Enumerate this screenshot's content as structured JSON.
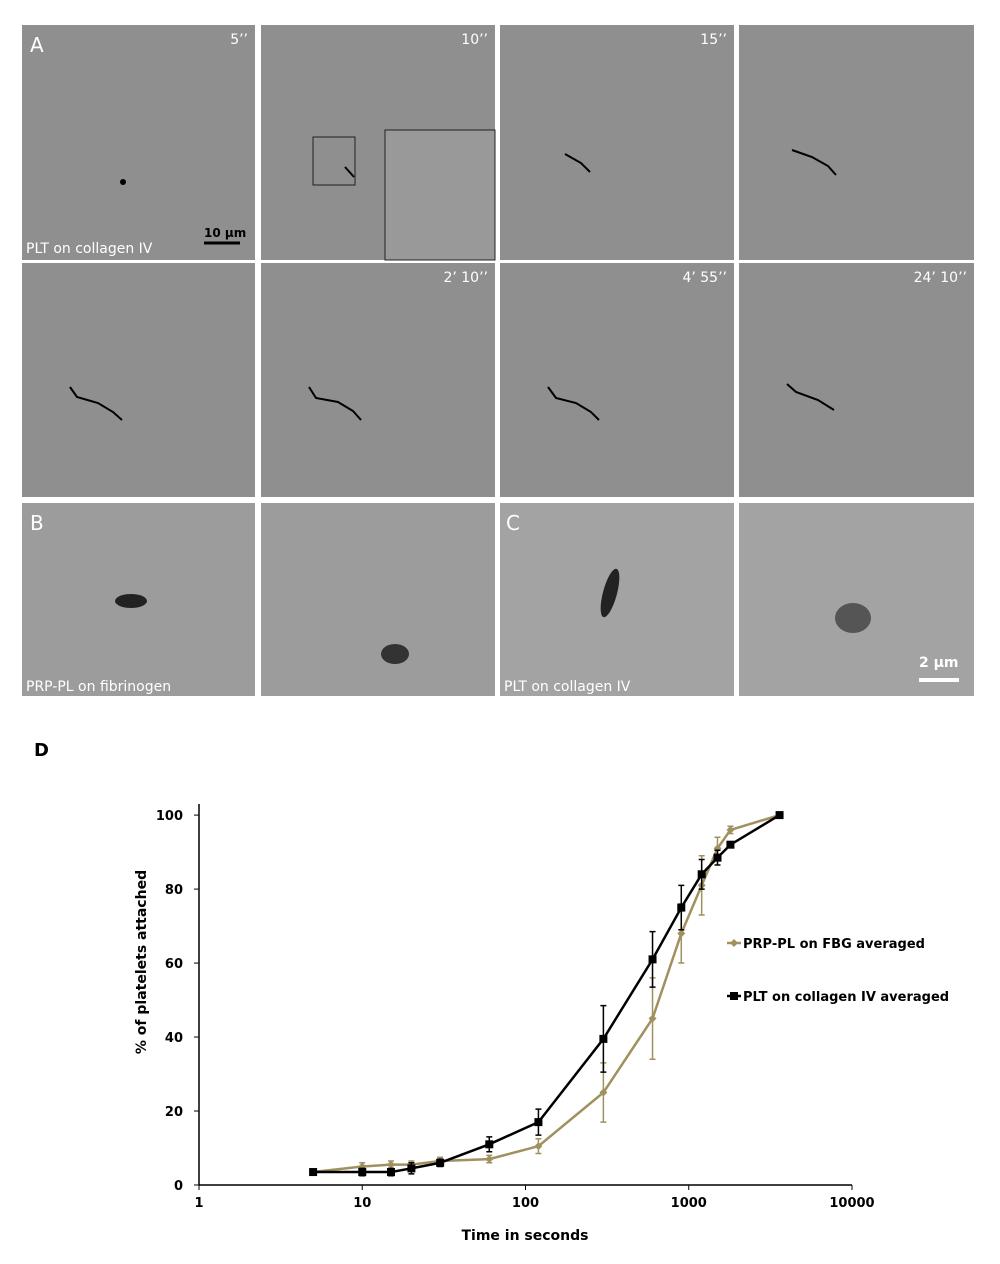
{
  "panels": {
    "a1": {
      "letter": "A",
      "time": "5’’",
      "scale": "10 µm",
      "caption": "PLT on collagen IV"
    },
    "a2": {
      "time": "10’’"
    },
    "a3": {
      "time": "15’’"
    },
    "a6": {
      "time": "2’ 10’’"
    },
    "a7": {
      "time": "4’ 55’’"
    },
    "a8": {
      "time": "24’ 10’’"
    },
    "b1": {
      "letter": "B",
      "caption": "PRP-PL on fibrinogen"
    },
    "c1": {
      "letter": "C",
      "caption": "PLT on collagen IV"
    },
    "c2": {
      "scale": "2 µm"
    }
  },
  "chart_data": {
    "type": "line",
    "panel_label": "D",
    "x_label": "Time in seconds",
    "y_label": "% of platelets attached",
    "x_scale": "log",
    "xlim": [
      1,
      10000
    ],
    "xticks": [
      1,
      10,
      100,
      1000,
      10000
    ],
    "ylim": [
      0,
      103
    ],
    "yticks": [
      0,
      20,
      40,
      60,
      80,
      100
    ],
    "legend": "right",
    "x": [
      5,
      10,
      15,
      20,
      30,
      60,
      120,
      300,
      600,
      900,
      1200,
      1500,
      1800,
      3600
    ],
    "series": [
      {
        "name": "PRP-PL on FBG averaged",
        "color": "#a0915f",
        "marker": "diamond",
        "values": [
          3.5,
          5,
          5.5,
          5.5,
          6.5,
          7,
          10.5,
          25,
          45,
          68,
          81,
          91,
          96,
          100
        ],
        "errors": [
          0.5,
          1,
          1,
          1,
          1,
          1,
          2,
          8,
          11,
          8,
          8,
          3,
          1,
          0
        ]
      },
      {
        "name": "PLT on collagen IV averaged",
        "color": "#000000",
        "marker": "square",
        "values": [
          3.5,
          3.5,
          3.5,
          4.5,
          6,
          11,
          17,
          39.5,
          61,
          75,
          84,
          88.5,
          92,
          100
        ],
        "errors": [
          0.5,
          1,
          1,
          1.5,
          1,
          2,
          3.5,
          9,
          7.5,
          6,
          4,
          2,
          0.5,
          0
        ]
      }
    ]
  }
}
